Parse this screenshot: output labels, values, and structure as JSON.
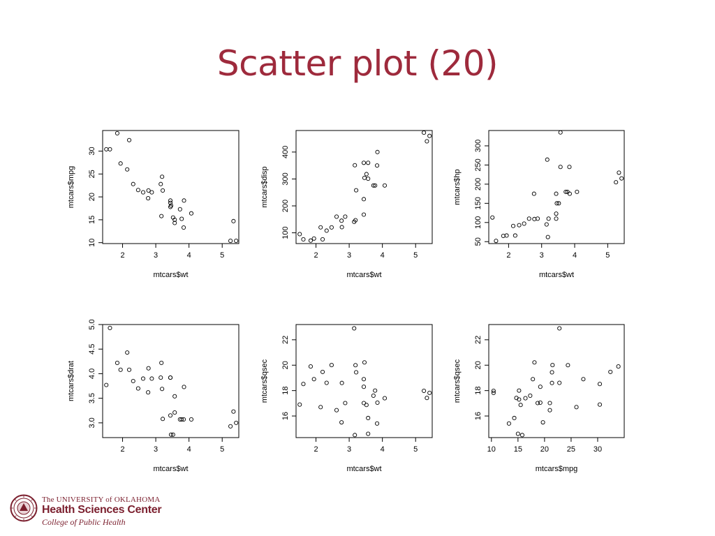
{
  "slide": {
    "title": "Scatter plot (20)"
  },
  "footer": {
    "university": "The UNIVERSITY of OKLAHOMA",
    "center": "Health Sciences Center",
    "college": "College of Public Health",
    "brand_color": "#7b1f2e"
  },
  "chart_data": [
    {
      "type": "scatter",
      "xlabel": "mtcars$wt",
      "ylabel": "mtcars$mpg",
      "xlim": [
        1.4,
        5.5
      ],
      "ylim": [
        9.8,
        34.5
      ],
      "xticks": [
        2,
        3,
        4,
        5
      ],
      "yticks": [
        10,
        15,
        20,
        25,
        30
      ],
      "points": [
        [
          1.51,
          30.4
        ],
        [
          1.62,
          30.4
        ],
        [
          1.84,
          33.9
        ],
        [
          1.94,
          27.3
        ],
        [
          2.14,
          26.0
        ],
        [
          2.2,
          32.4
        ],
        [
          2.32,
          22.8
        ],
        [
          2.47,
          21.5
        ],
        [
          2.62,
          21.0
        ],
        [
          2.77,
          19.7
        ],
        [
          2.78,
          21.4
        ],
        [
          2.88,
          21.0
        ],
        [
          3.15,
          22.8
        ],
        [
          3.17,
          15.8
        ],
        [
          3.19,
          24.4
        ],
        [
          3.21,
          21.4
        ],
        [
          3.44,
          17.8
        ],
        [
          3.44,
          18.7
        ],
        [
          3.44,
          19.2
        ],
        [
          3.46,
          18.1
        ],
        [
          3.52,
          15.5
        ],
        [
          3.57,
          14.3
        ],
        [
          3.57,
          15.0
        ],
        [
          3.73,
          17.3
        ],
        [
          3.78,
          15.2
        ],
        [
          3.84,
          13.3
        ],
        [
          3.85,
          19.2
        ],
        [
          4.07,
          16.4
        ],
        [
          5.25,
          10.4
        ],
        [
          5.34,
          14.7
        ],
        [
          5.42,
          10.4
        ]
      ]
    },
    {
      "type": "scatter",
      "xlabel": "mtcars$wt",
      "ylabel": "mtcars$disp",
      "xlim": [
        1.4,
        5.5
      ],
      "ylim": [
        60,
        480
      ],
      "xticks": [
        2,
        3,
        4,
        5
      ],
      "yticks": [
        100,
        200,
        300,
        400
      ],
      "points": [
        [
          1.51,
          95.1
        ],
        [
          1.62,
          75.7
        ],
        [
          1.84,
          71.1
        ],
        [
          1.94,
          78.7
        ],
        [
          2.14,
          120.3
        ],
        [
          2.2,
          75.7
        ],
        [
          2.32,
          108
        ],
        [
          2.47,
          120.1
        ],
        [
          2.62,
          160
        ],
        [
          2.77,
          145
        ],
        [
          2.78,
          121
        ],
        [
          2.88,
          160
        ],
        [
          3.15,
          140.8
        ],
        [
          3.17,
          351
        ],
        [
          3.19,
          146.7
        ],
        [
          3.21,
          258
        ],
        [
          3.44,
          167.6
        ],
        [
          3.44,
          225
        ],
        [
          3.44,
          360
        ],
        [
          3.46,
          304
        ],
        [
          3.52,
          318
        ],
        [
          3.57,
          360
        ],
        [
          3.57,
          301
        ],
        [
          3.73,
          275.8
        ],
        [
          3.78,
          275.8
        ],
        [
          3.84,
          350
        ],
        [
          3.85,
          400
        ],
        [
          4.07,
          275.8
        ],
        [
          5.25,
          472
        ],
        [
          5.34,
          440
        ],
        [
          5.42,
          460
        ]
      ]
    },
    {
      "type": "scatter",
      "xlabel": "mtcars$wt",
      "ylabel": "mtcars$hp",
      "xlim": [
        1.4,
        5.5
      ],
      "ylim": [
        45,
        340
      ],
      "xticks": [
        2,
        3,
        4,
        5
      ],
      "yticks": [
        50,
        100,
        150,
        200,
        250,
        300
      ],
      "points": [
        [
          1.51,
          113
        ],
        [
          1.62,
          52
        ],
        [
          1.84,
          65
        ],
        [
          1.94,
          66
        ],
        [
          2.14,
          91
        ],
        [
          2.2,
          66
        ],
        [
          2.32,
          93
        ],
        [
          2.47,
          97
        ],
        [
          2.62,
          110
        ],
        [
          2.77,
          175
        ],
        [
          2.78,
          109
        ],
        [
          2.88,
          110
        ],
        [
          3.15,
          95
        ],
        [
          3.17,
          264
        ],
        [
          3.19,
          62
        ],
        [
          3.21,
          110
        ],
        [
          3.44,
          123
        ],
        [
          3.44,
          110
        ],
        [
          3.44,
          175
        ],
        [
          3.46,
          150
        ],
        [
          3.52,
          150
        ],
        [
          3.57,
          245
        ],
        [
          3.57,
          335
        ],
        [
          3.73,
          180
        ],
        [
          3.78,
          180
        ],
        [
          3.84,
          245
        ],
        [
          3.85,
          175
        ],
        [
          4.07,
          180
        ],
        [
          5.25,
          205
        ],
        [
          5.34,
          230
        ],
        [
          5.42,
          215
        ]
      ]
    },
    {
      "type": "scatter",
      "xlabel": "mtcars$wt",
      "ylabel": "mtcars$drat",
      "xlim": [
        1.4,
        5.5
      ],
      "ylim": [
        2.7,
        5.0
      ],
      "xticks": [
        2,
        3,
        4,
        5
      ],
      "yticks": [
        3.0,
        3.5,
        4.0,
        4.5,
        5.0
      ],
      "points": [
        [
          1.51,
          3.77
        ],
        [
          1.62,
          4.93
        ],
        [
          1.84,
          4.22
        ],
        [
          1.94,
          4.08
        ],
        [
          2.14,
          4.43
        ],
        [
          2.2,
          4.08
        ],
        [
          2.32,
          3.85
        ],
        [
          2.47,
          3.7
        ],
        [
          2.62,
          3.9
        ],
        [
          2.77,
          3.62
        ],
        [
          2.78,
          4.11
        ],
        [
          2.88,
          3.9
        ],
        [
          3.15,
          3.92
        ],
        [
          3.17,
          4.22
        ],
        [
          3.19,
          3.69
        ],
        [
          3.21,
          3.08
        ],
        [
          3.44,
          3.92
        ],
        [
          3.44,
          3.92
        ],
        [
          3.44,
          3.15
        ],
        [
          3.46,
          2.76
        ],
        [
          3.52,
          2.76
        ],
        [
          3.57,
          3.21
        ],
        [
          3.57,
          3.54
        ],
        [
          3.73,
          3.07
        ],
        [
          3.78,
          3.07
        ],
        [
          3.84,
          3.07
        ],
        [
          3.85,
          3.73
        ],
        [
          4.07,
          3.07
        ],
        [
          5.25,
          2.93
        ],
        [
          5.34,
          3.23
        ],
        [
          5.42,
          3.0
        ]
      ]
    },
    {
      "type": "scatter",
      "xlabel": "mtcars$wt",
      "ylabel": "mtcars$qsec",
      "xlim": [
        1.4,
        5.5
      ],
      "ylim": [
        14.3,
        23.2
      ],
      "xticks": [
        2,
        3,
        4,
        5
      ],
      "yticks": [
        16,
        18,
        20,
        22
      ],
      "points": [
        [
          1.51,
          16.9
        ],
        [
          1.62,
          18.52
        ],
        [
          1.84,
          19.9
        ],
        [
          1.94,
          18.9
        ],
        [
          2.14,
          16.7
        ],
        [
          2.2,
          19.47
        ],
        [
          2.32,
          18.61
        ],
        [
          2.47,
          20.01
        ],
        [
          2.62,
          16.46
        ],
        [
          2.77,
          15.5
        ],
        [
          2.78,
          18.6
        ],
        [
          2.88,
          17.02
        ],
        [
          3.15,
          22.9
        ],
        [
          3.17,
          14.5
        ],
        [
          3.19,
          20.0
        ],
        [
          3.21,
          19.44
        ],
        [
          3.44,
          18.3
        ],
        [
          3.44,
          18.9
        ],
        [
          3.44,
          17.02
        ],
        [
          3.46,
          20.22
        ],
        [
          3.52,
          16.87
        ],
        [
          3.57,
          15.84
        ],
        [
          3.57,
          14.6
        ],
        [
          3.73,
          17.6
        ],
        [
          3.78,
          18.0
        ],
        [
          3.84,
          15.41
        ],
        [
          3.85,
          17.05
        ],
        [
          4.07,
          17.4
        ],
        [
          5.25,
          17.98
        ],
        [
          5.34,
          17.42
        ],
        [
          5.42,
          17.82
        ]
      ]
    },
    {
      "type": "scatter",
      "xlabel": "mtcars$mpg",
      "ylabel": "mtcars$qsec",
      "xlim": [
        9.5,
        35
      ],
      "ylim": [
        14.3,
        23.2
      ],
      "xticks": [
        10,
        15,
        20,
        25,
        30
      ],
      "yticks": [
        16,
        18,
        20,
        22
      ],
      "points": [
        [
          21,
          16.46
        ],
        [
          21,
          17.02
        ],
        [
          22.8,
          18.61
        ],
        [
          21.4,
          19.44
        ],
        [
          18.7,
          17.02
        ],
        [
          18.1,
          20.22
        ],
        [
          14.3,
          15.84
        ],
        [
          24.4,
          20.0
        ],
        [
          22.8,
          22.9
        ],
        [
          19.2,
          18.3
        ],
        [
          17.8,
          18.9
        ],
        [
          16.4,
          17.4
        ],
        [
          17.3,
          17.6
        ],
        [
          15.2,
          18.0
        ],
        [
          10.4,
          17.98
        ],
        [
          10.4,
          17.82
        ],
        [
          14.7,
          17.42
        ],
        [
          32.4,
          19.47
        ],
        [
          30.4,
          18.52
        ],
        [
          33.9,
          19.9
        ],
        [
          21.5,
          20.01
        ],
        [
          15.5,
          16.87
        ],
        [
          15.2,
          17.3
        ],
        [
          13.3,
          15.41
        ],
        [
          19.2,
          17.05
        ],
        [
          27.3,
          18.9
        ],
        [
          26,
          16.7
        ],
        [
          30.4,
          16.9
        ],
        [
          15.8,
          14.5
        ],
        [
          19.7,
          15.5
        ],
        [
          15,
          14.6
        ],
        [
          21.4,
          18.6
        ]
      ]
    }
  ]
}
